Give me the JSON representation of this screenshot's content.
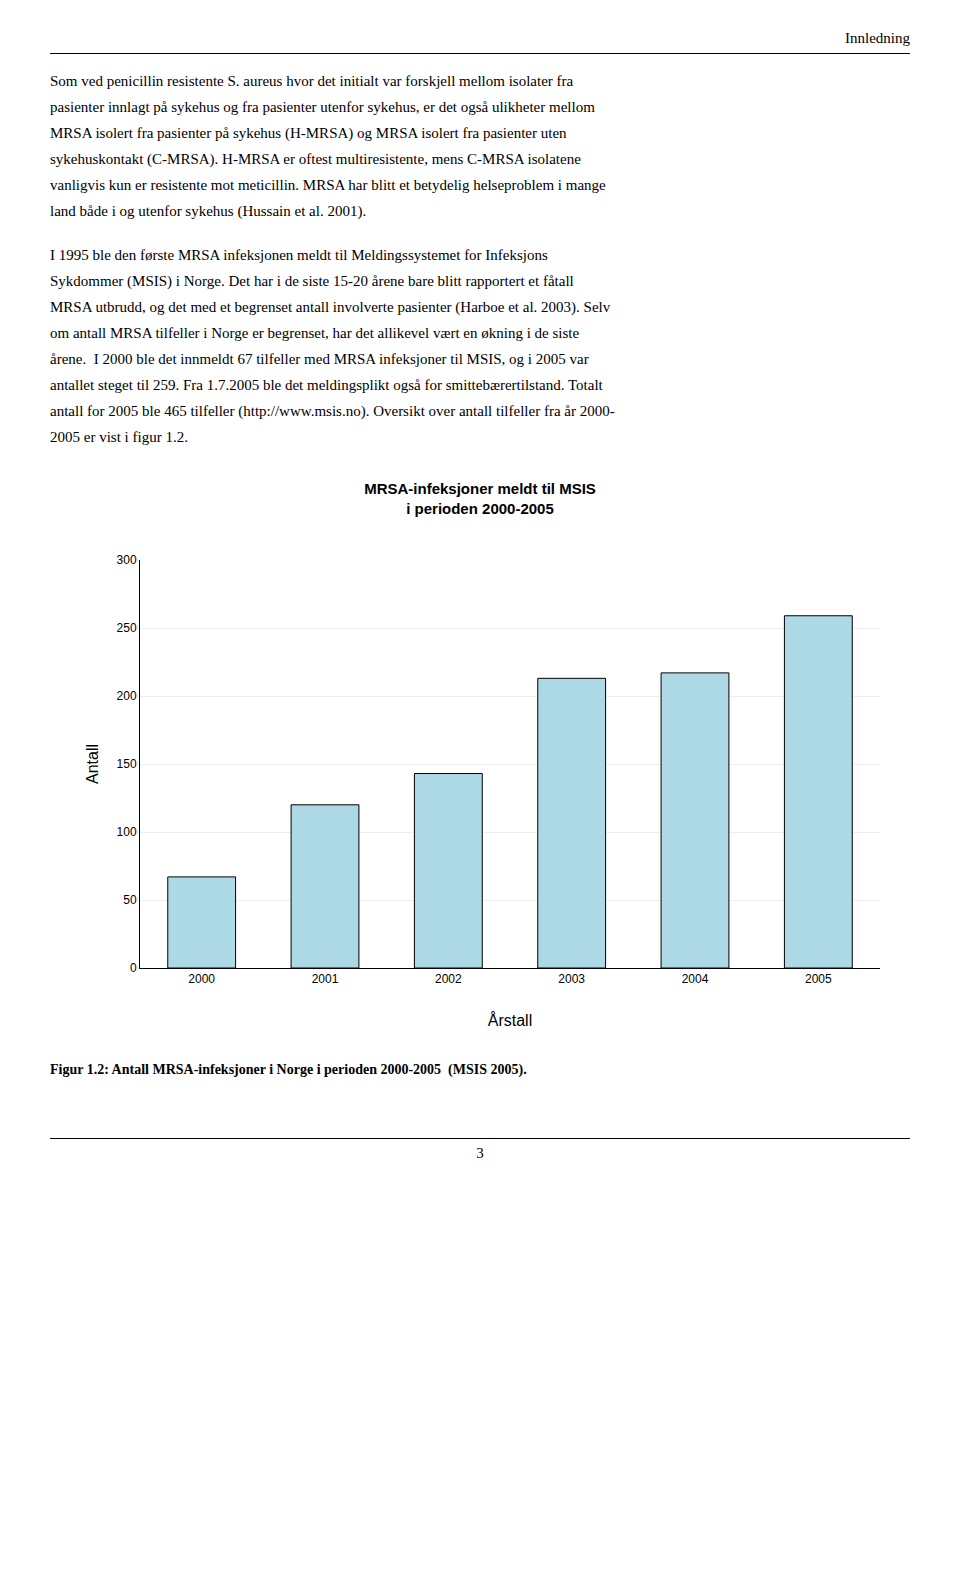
{
  "header": "Innledning",
  "paragraphs": [
    [
      "Som ved penicillin resistente S. aureus hvor det initialt var forskjell mellom isolater fra",
      "pasienter innlagt på sykehus og fra pasienter utenfor sykehus, er det også ulikheter mellom",
      "MRSA isolert fra pasienter på sykehus (H-MRSA) og MRSA isolert fra pasienter uten",
      "sykehuskontakt (C-MRSA). H-MRSA er oftest multiresistente, mens C-MRSA isolatene",
      "vanligvis kun er resistente mot meticillin. MRSA har blitt et betydelig helseproblem i mange",
      "land både i og utenfor sykehus (Hussain et al. 2001)."
    ],
    [
      "I 1995 ble den første MRSA infeksjonen meldt til Meldingssystemet for Infeksjons",
      "Sykdommer (MSIS) i Norge. Det har i de siste 15-20 årene bare blitt rapportert et fåtall",
      "MRSA utbrudd, og det med et begrenset antall involverte pasienter (Harboe et al. 2003). Selv",
      "om antall MRSA tilfeller i Norge er begrenset, har det allikevel vært en økning i de siste",
      "årene.  I 2000 ble det innmeldt 67 tilfeller med MRSA infeksjoner til MSIS, og i 2005 var",
      "antallet steget til 259. Fra 1.7.2005 ble det meldingsplikt også for smittebærertilstand. Totalt",
      "antall for 2005 ble 465 tilfeller (http://www.msis.no). Oversikt over antall tilfeller fra år 2000-",
      "2005 er vist i figur 1.2."
    ]
  ],
  "caption": "Figur 1.2: Antall MRSA-infeksjoner i Norge i perioden 2000-2005  (MSIS 2005).",
  "page_number": "3",
  "chart_data": {
    "type": "bar",
    "title": "MRSA-infeksjoner meldt til MSIS\ni perioden 2000-2005",
    "xlabel": "Årstall",
    "ylabel": "Antall",
    "categories": [
      "2000",
      "2001",
      "2002",
      "2003",
      "2004",
      "2005"
    ],
    "values": [
      67,
      120,
      143,
      213,
      217,
      259
    ],
    "color": "#add8e6",
    "ylim": [
      0,
      300
    ],
    "yticks": [
      0,
      50,
      100,
      150,
      200,
      250,
      300
    ],
    "grid": true
  }
}
